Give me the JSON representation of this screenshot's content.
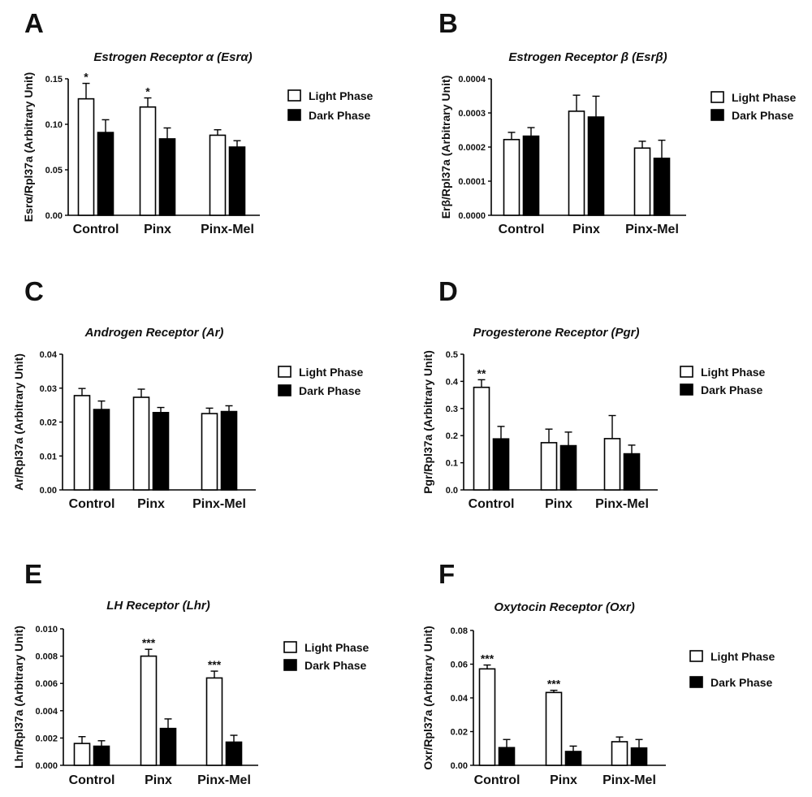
{
  "chart_data": [
    {
      "panel": "A",
      "type": "bar",
      "title": "Estrogen Receptor α (Esrα)",
      "ylabel": "Esrα/Rpl37a (Arbitrary Unit)",
      "ylim": [
        0,
        0.15
      ],
      "yticks": [
        "0.00",
        "0.05",
        "0.10",
        "0.15"
      ],
      "categories": [
        "Control",
        "Pinx",
        "Pinx-Mel"
      ],
      "legend": "right",
      "series": [
        {
          "name": "Light Phase",
          "color": "#ffffff",
          "values": [
            0.128,
            0.119,
            0.088
          ],
          "errors": [
            0.017,
            0.01,
            0.006
          ]
        },
        {
          "name": "Dark Phase",
          "color": "#000000",
          "values": [
            0.091,
            0.084,
            0.075
          ],
          "errors": [
            0.014,
            0.012,
            0.007
          ]
        }
      ],
      "significance": [
        {
          "category": 0,
          "series": 0,
          "label": "*"
        },
        {
          "category": 1,
          "series": 0,
          "label": "*"
        }
      ]
    },
    {
      "panel": "B",
      "type": "bar",
      "title": "Estrogen Receptor β (Esrβ)",
      "ylabel": "Erβ/Rpl37a (Arbitrary Unit)",
      "ylim": [
        0,
        0.0004
      ],
      "yticks": [
        "0.0000",
        "0.0001",
        "0.0002",
        "0.0003",
        "0.0004"
      ],
      "categories": [
        "Control",
        "Pinx",
        "Pinx-Mel"
      ],
      "legend": "right",
      "series": [
        {
          "name": "Light Phase",
          "color": "#ffffff",
          "values": [
            0.000222,
            0.000305,
            0.000197
          ],
          "errors": [
            2.1e-05,
            4.7e-05,
            2e-05
          ]
        },
        {
          "name": "Dark Phase",
          "color": "#000000",
          "values": [
            0.000232,
            0.000288,
            0.000167
          ],
          "errors": [
            2.5e-05,
            6.1e-05,
            5.3e-05
          ]
        }
      ],
      "significance": []
    },
    {
      "panel": "C",
      "type": "bar",
      "title": "Androgen Receptor (Ar)",
      "ylabel": "Ar/Rpl37a (Arbitrary Unit)",
      "ylim": [
        0,
        0.04
      ],
      "yticks": [
        "0.00",
        "0.01",
        "0.02",
        "0.03",
        "0.04"
      ],
      "categories": [
        "Control",
        "Pinx",
        "Pinx-Mel"
      ],
      "legend": "right",
      "series": [
        {
          "name": "Light Phase",
          "color": "#ffffff",
          "values": [
            0.0278,
            0.0273,
            0.0225
          ],
          "errors": [
            0.0021,
            0.0024,
            0.0016
          ]
        },
        {
          "name": "Dark Phase",
          "color": "#000000",
          "values": [
            0.0237,
            0.0228,
            0.0231
          ],
          "errors": [
            0.0025,
            0.0015,
            0.0017
          ]
        }
      ],
      "significance": []
    },
    {
      "panel": "D",
      "type": "bar",
      "title": "Progesterone Receptor (Pgr)",
      "ylabel": "Pgr/Rpl37a (Arbitrary Unit)",
      "ylim": [
        0,
        0.5
      ],
      "yticks": [
        "0.0",
        "0.1",
        "0.2",
        "0.3",
        "0.4",
        "0.5"
      ],
      "categories": [
        "Control",
        "Pinx",
        "Pinx-Mel"
      ],
      "legend": "right",
      "series": [
        {
          "name": "Light Phase",
          "color": "#ffffff",
          "values": [
            0.378,
            0.174,
            0.189
          ],
          "errors": [
            0.028,
            0.05,
            0.085
          ]
        },
        {
          "name": "Dark Phase",
          "color": "#000000",
          "values": [
            0.188,
            0.163,
            0.133
          ],
          "errors": [
            0.046,
            0.05,
            0.032
          ]
        }
      ],
      "significance": [
        {
          "category": 0,
          "series": 0,
          "label": "**"
        }
      ]
    },
    {
      "panel": "E",
      "type": "bar",
      "title": "LH Receptor (Lhr)",
      "ylabel": "Lhr/Rpl37a (Arbitrary Unit)",
      "ylim": [
        0,
        0.01
      ],
      "yticks": [
        "0.000",
        "0.002",
        "0.004",
        "0.006",
        "0.008",
        "0.010"
      ],
      "categories": [
        "Control",
        "Pinx",
        "Pinx-Mel"
      ],
      "legend": "right",
      "series": [
        {
          "name": "Light Phase",
          "color": "#ffffff",
          "values": [
            0.0016,
            0.008,
            0.0064
          ],
          "errors": [
            0.0005,
            0.0005,
            0.0005
          ]
        },
        {
          "name": "Dark Phase",
          "color": "#000000",
          "values": [
            0.0014,
            0.0027,
            0.0017
          ],
          "errors": [
            0.0004,
            0.0007,
            0.0005
          ]
        }
      ],
      "significance": [
        {
          "category": 1,
          "series": 0,
          "label": "***"
        },
        {
          "category": 2,
          "series": 0,
          "label": "***"
        }
      ]
    },
    {
      "panel": "F",
      "type": "bar",
      "title": "Oxytocin Receptor (Oxr)",
      "ylabel": "Oxr/Rpl37a (Arbitrary Unit)",
      "ylim": [
        0,
        0.08
      ],
      "yticks": [
        "0.00",
        "0.02",
        "0.04",
        "0.06",
        "0.08"
      ],
      "categories": [
        "Control",
        "Pinx",
        "Pinx-Mel"
      ],
      "legend": "right",
      "series": [
        {
          "name": "Light Phase",
          "color": "#ffffff",
          "values": [
            0.0572,
            0.0432,
            0.014
          ],
          "errors": [
            0.0023,
            0.0013,
            0.0028
          ]
        },
        {
          "name": "Dark Phase",
          "color": "#000000",
          "values": [
            0.0105,
            0.0082,
            0.0103
          ],
          "errors": [
            0.0048,
            0.0032,
            0.005
          ]
        }
      ],
      "significance": [
        {
          "category": 0,
          "series": 0,
          "label": "***"
        },
        {
          "category": 1,
          "series": 0,
          "label": "***"
        }
      ]
    }
  ]
}
